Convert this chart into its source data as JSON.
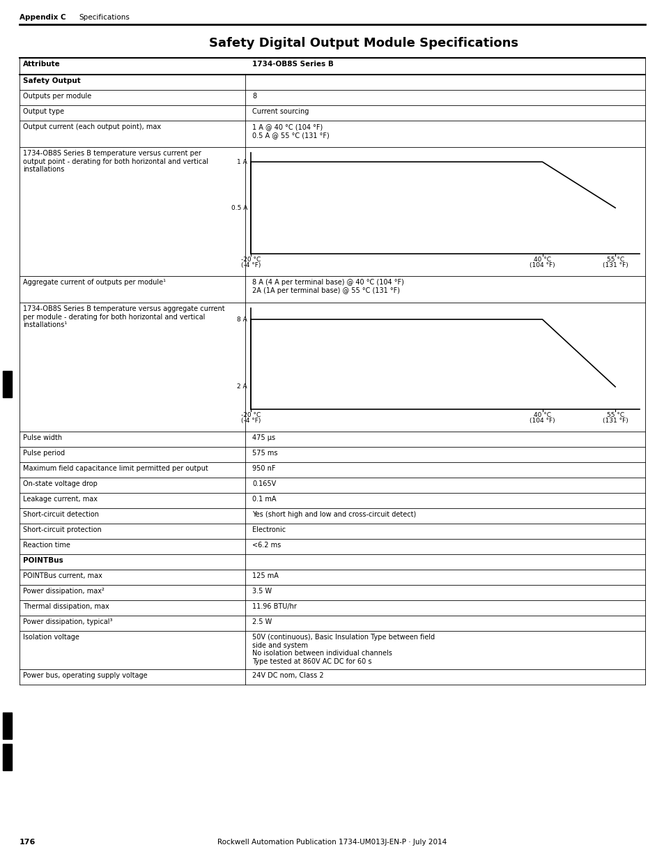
{
  "title": "Safety Digital Output Module Specifications",
  "header_left": "Appendix C",
  "header_right": "Specifications",
  "footer_page": "176",
  "footer_center": "Rockwell Automation Publication 1734-UM013J-EN-P · July 2014",
  "col1_header": "Attribute",
  "col2_header": "1734-OB8S Series B",
  "table_rows": [
    {
      "type": "section",
      "col1": "Safety Output",
      "col2": ""
    },
    {
      "type": "data",
      "col1": "Outputs per module",
      "col2": "8"
    },
    {
      "type": "data",
      "col1": "Output type",
      "col2": "Current sourcing"
    },
    {
      "type": "data",
      "col1": "Output current (each output point), max",
      "col2": "1 A @ 40 °C (104 °F)\n0.5 A @ 55 °C (131 °F)"
    },
    {
      "type": "graph1",
      "col1": "1734-OB8S Series B temperature versus current per\noutput point - derating for both horizontal and vertical\ninstallations",
      "col2": ""
    },
    {
      "type": "data",
      "col1": "Aggregate current of outputs per module¹",
      "col2": "8 A (4 A per terminal base) @ 40 °C (104 °F)\n2A (1A per terminal base) @ 55 °C (131 °F)"
    },
    {
      "type": "graph2",
      "col1": "1734-OB8S Series B temperature versus aggregate current\nper module - derating for both horizontal and vertical\ninstallations¹",
      "col2": ""
    },
    {
      "type": "data",
      "col1": "Pulse width",
      "col2": "475 μs"
    },
    {
      "type": "data",
      "col1": "Pulse period",
      "col2": "575 ms"
    },
    {
      "type": "data",
      "col1": "Maximum field capacitance limit permitted per output",
      "col2": "950 nF"
    },
    {
      "type": "data",
      "col1": "On-state voltage drop",
      "col2": "0.165V"
    },
    {
      "type": "data",
      "col1": "Leakage current, max",
      "col2": "0.1 mA"
    },
    {
      "type": "data",
      "col1": "Short-circuit detection",
      "col2": "Yes (short high and low and cross-circuit detect)"
    },
    {
      "type": "data",
      "col1": "Short-circuit protection",
      "col2": "Electronic"
    },
    {
      "type": "data",
      "col1": "Reaction time",
      "col2": "<6.2 ms"
    },
    {
      "type": "section",
      "col1": "POINTBus",
      "col2": ""
    },
    {
      "type": "data",
      "col1": "POINTBus current, max",
      "col2": "125 mA"
    },
    {
      "type": "data",
      "col1": "Power dissipation, max²",
      "col2": "3.5 W"
    },
    {
      "type": "data",
      "col1": "Thermal dissipation, max",
      "col2": "11.96 BTU/hr"
    },
    {
      "type": "data",
      "col1": "Power dissipation, typical³",
      "col2": "2.5 W"
    },
    {
      "type": "data_multiline",
      "col1": "Isolation voltage",
      "col2": "50V (continuous), Basic Insulation Type between field\nside and system\nNo isolation between individual channels\nType tested at 860V AC DC for 60 s"
    },
    {
      "type": "data",
      "col1": "Power bus, operating supply voltage",
      "col2": "24V DC nom, Class 2"
    }
  ],
  "bg_color": "#ffffff",
  "text_color": "#000000",
  "line_color": "#000000",
  "header_line_color": "#000000"
}
